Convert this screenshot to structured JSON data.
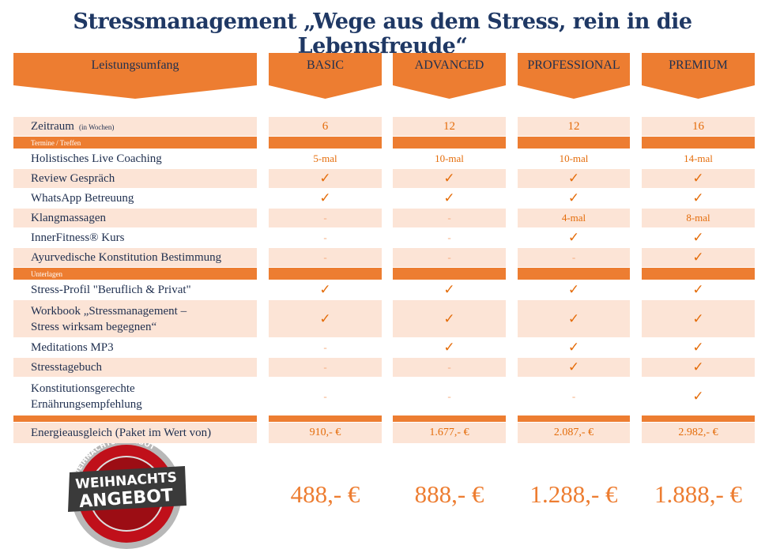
{
  "header": {
    "title": "Stressmanagement „Wege aus dem Stress, rein in die Lebensfreude“"
  },
  "table": {
    "columns": [
      "Leistungsumfang",
      "BASIC",
      "ADVANCED",
      "PROFESSIONAL",
      "PREMIUM"
    ],
    "rows": [
      {
        "label": [
          "Zeitraum"
        ],
        "note": "(in Wochen)",
        "cells": [
          "6",
          "12",
          "12",
          "16"
        ]
      },
      {
        "section": "Termine / Treffen"
      },
      {
        "label": [
          "Holistisches Live Coaching"
        ],
        "cells": [
          "5-mal",
          "10-mal",
          "10-mal",
          "14-mal"
        ]
      },
      {
        "label": [
          "Review Gespräch"
        ],
        "cells": [
          "✓",
          "✓",
          "✓",
          "✓"
        ]
      },
      {
        "label": [
          "WhatsApp Betreuung"
        ],
        "cells": [
          "✓",
          "✓",
          "✓",
          "✓"
        ]
      },
      {
        "label": [
          "Klangmassagen"
        ],
        "cells": [
          "-",
          "-",
          "4-mal",
          "8-mal"
        ]
      },
      {
        "label": [
          "InnerFitness® Kurs"
        ],
        "cells": [
          "-",
          "-",
          "✓",
          "✓"
        ]
      },
      {
        "label": [
          "Ayurvedische Konstitution Bestimmung"
        ],
        "cells": [
          "-",
          "-",
          "-",
          "✓"
        ]
      },
      {
        "section": "Unterlagen"
      },
      {
        "label": [
          "Stress-Profil \"Beruflich & Privat\""
        ],
        "cells": [
          "✓",
          "✓",
          "✓",
          "✓"
        ]
      },
      {
        "label": [
          "Workbook „Stressmanagement –",
          "Stress wirksam begegnen“"
        ],
        "cells": [
          "✓",
          "✓",
          "✓",
          "✓"
        ]
      },
      {
        "label": [
          "Meditations MP3"
        ],
        "cells": [
          "-",
          "✓",
          "✓",
          "✓"
        ]
      },
      {
        "label": [
          "Stresstagebuch"
        ],
        "cells": [
          "-",
          "-",
          "✓",
          "✓"
        ]
      },
      {
        "label": [
          "Konstitutionsgerechte",
          "Ernährungsempfehlung"
        ],
        "cells": [
          "-",
          "-",
          "-",
          "✓"
        ]
      }
    ],
    "total": {
      "label": "Energieausgleich (Paket im Wert von)",
      "cells": [
        "910,- €",
        "1.677,- €",
        "2.087,- €",
        "2.982,- €"
      ]
    },
    "offer": {
      "cells": [
        "488,- €",
        "888,- €",
        "1.288,- €",
        "1.888,- €"
      ]
    }
  },
  "badge": {
    "ring": "WEIHNACHTSANGEBOT",
    "line1": "WEIHNACHTS",
    "line2": "ANGEBOT"
  }
}
